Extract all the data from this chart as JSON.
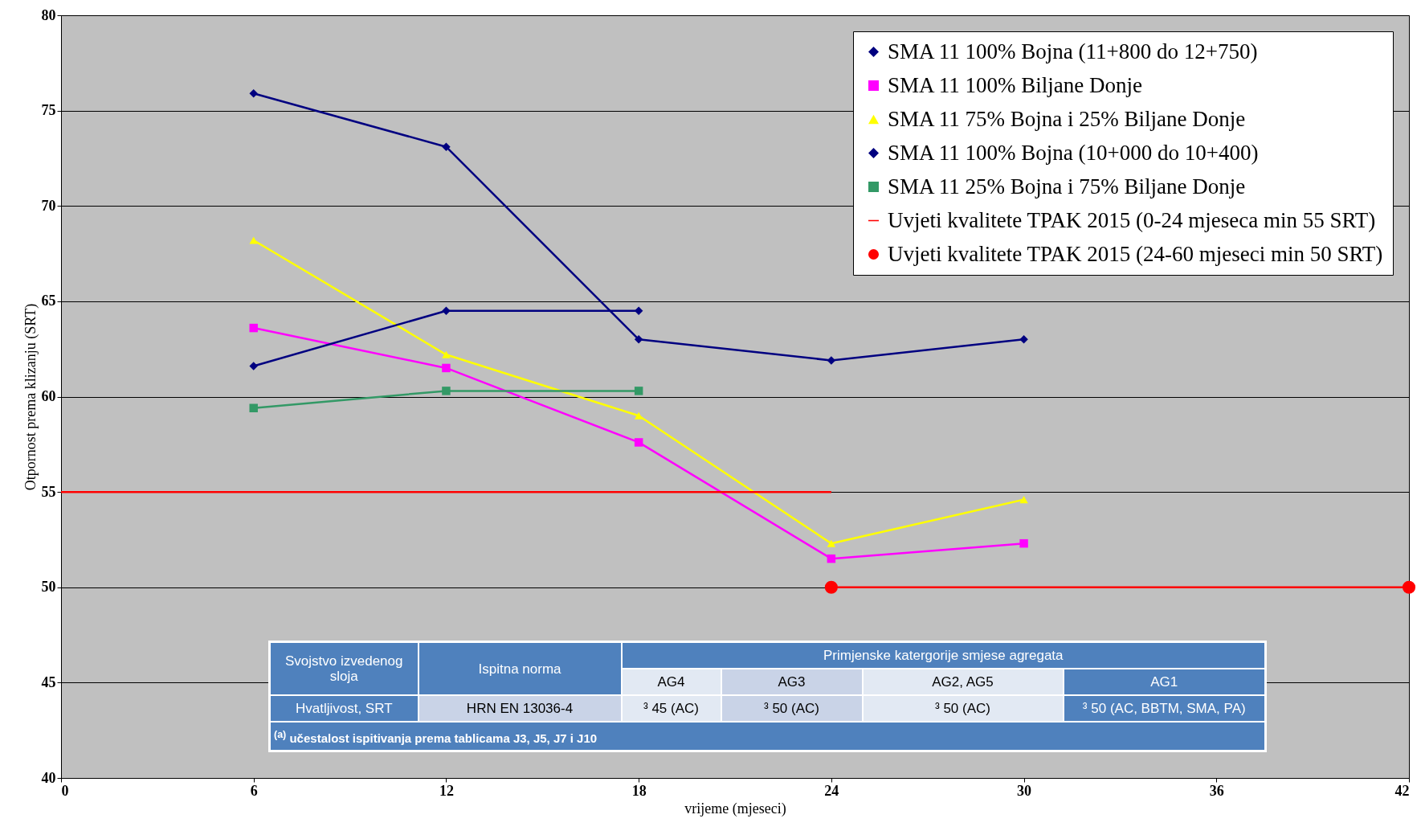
{
  "chart_data": {
    "type": "line",
    "xlabel": "vrijeme (mjeseci)",
    "ylabel": "Otpornost prema klizanju (SRT)",
    "x": [
      6,
      12,
      18,
      24,
      30
    ],
    "xlim": [
      0,
      42
    ],
    "xticks": [
      0,
      6,
      12,
      18,
      24,
      30,
      36,
      42
    ],
    "ylim": [
      40,
      80
    ],
    "yticks": [
      40,
      45,
      50,
      55,
      60,
      65,
      70,
      75,
      80
    ],
    "grid": "y",
    "legend": "top right",
    "line_style": "solid",
    "series": [
      {
        "name": "SMA 11 100% Bojna (11+800 do 12+750)",
        "color": "#000080",
        "marker": "diamond",
        "values": [
          75.9,
          73.1,
          63.0,
          61.9,
          63.0
        ]
      },
      {
        "name": "SMA 11 100% Biljane Donje",
        "color": "#ff00ff",
        "marker": "square",
        "values": [
          63.6,
          61.5,
          57.6,
          51.5,
          52.3
        ]
      },
      {
        "name": "SMA 11 75% Bojna i 25% Biljane Donje",
        "color": "#ffff00",
        "marker": "triangle",
        "values": [
          68.2,
          62.2,
          59.0,
          52.3,
          54.6
        ]
      },
      {
        "name": "SMA 11 100% Bojna (10+000 do 10+400)",
        "color": "#000080",
        "marker": "diamond",
        "values": [
          61.6,
          64.5,
          64.5,
          null,
          null
        ]
      },
      {
        "name": "SMA 11 25% Bojna i 75% Biljane Donje",
        "color": "#339966",
        "marker": "square",
        "values": [
          59.4,
          60.3,
          60.3,
          null,
          null
        ]
      },
      {
        "name": "Uvjeti kvalitete TPAK 2015 (0-24 mjeseca min 55 SRT)",
        "color": "#ff0000",
        "marker": "none",
        "x": [
          0,
          24
        ],
        "values": [
          55,
          55
        ]
      },
      {
        "name": "Uvjeti kvalitete TPAK 2015 (24-60 mjeseci min 50 SRT)",
        "color": "#ff0000",
        "marker": "circle",
        "x": [
          24,
          42
        ],
        "values": [
          50,
          50
        ]
      }
    ],
    "annotations": [
      "Svojstvo izvedenog sloja",
      "Ispitna norma",
      "Primjenske katergorije smjese agregata",
      "AG4",
      "AG3",
      "AG2, AG5",
      "AG1",
      "Hvatljivost, SRT",
      "HRN EN 13036-4",
      "³ 45 (AC)",
      "³ 50 (AC)",
      "³ 50 (AC)",
      "³ 50 (AC, BBTM, SMA, PA)",
      "$^{(a)}$ učestalost ispitivanja prema tablicama J3, J5, J7 i J10"
    ]
  }
}
